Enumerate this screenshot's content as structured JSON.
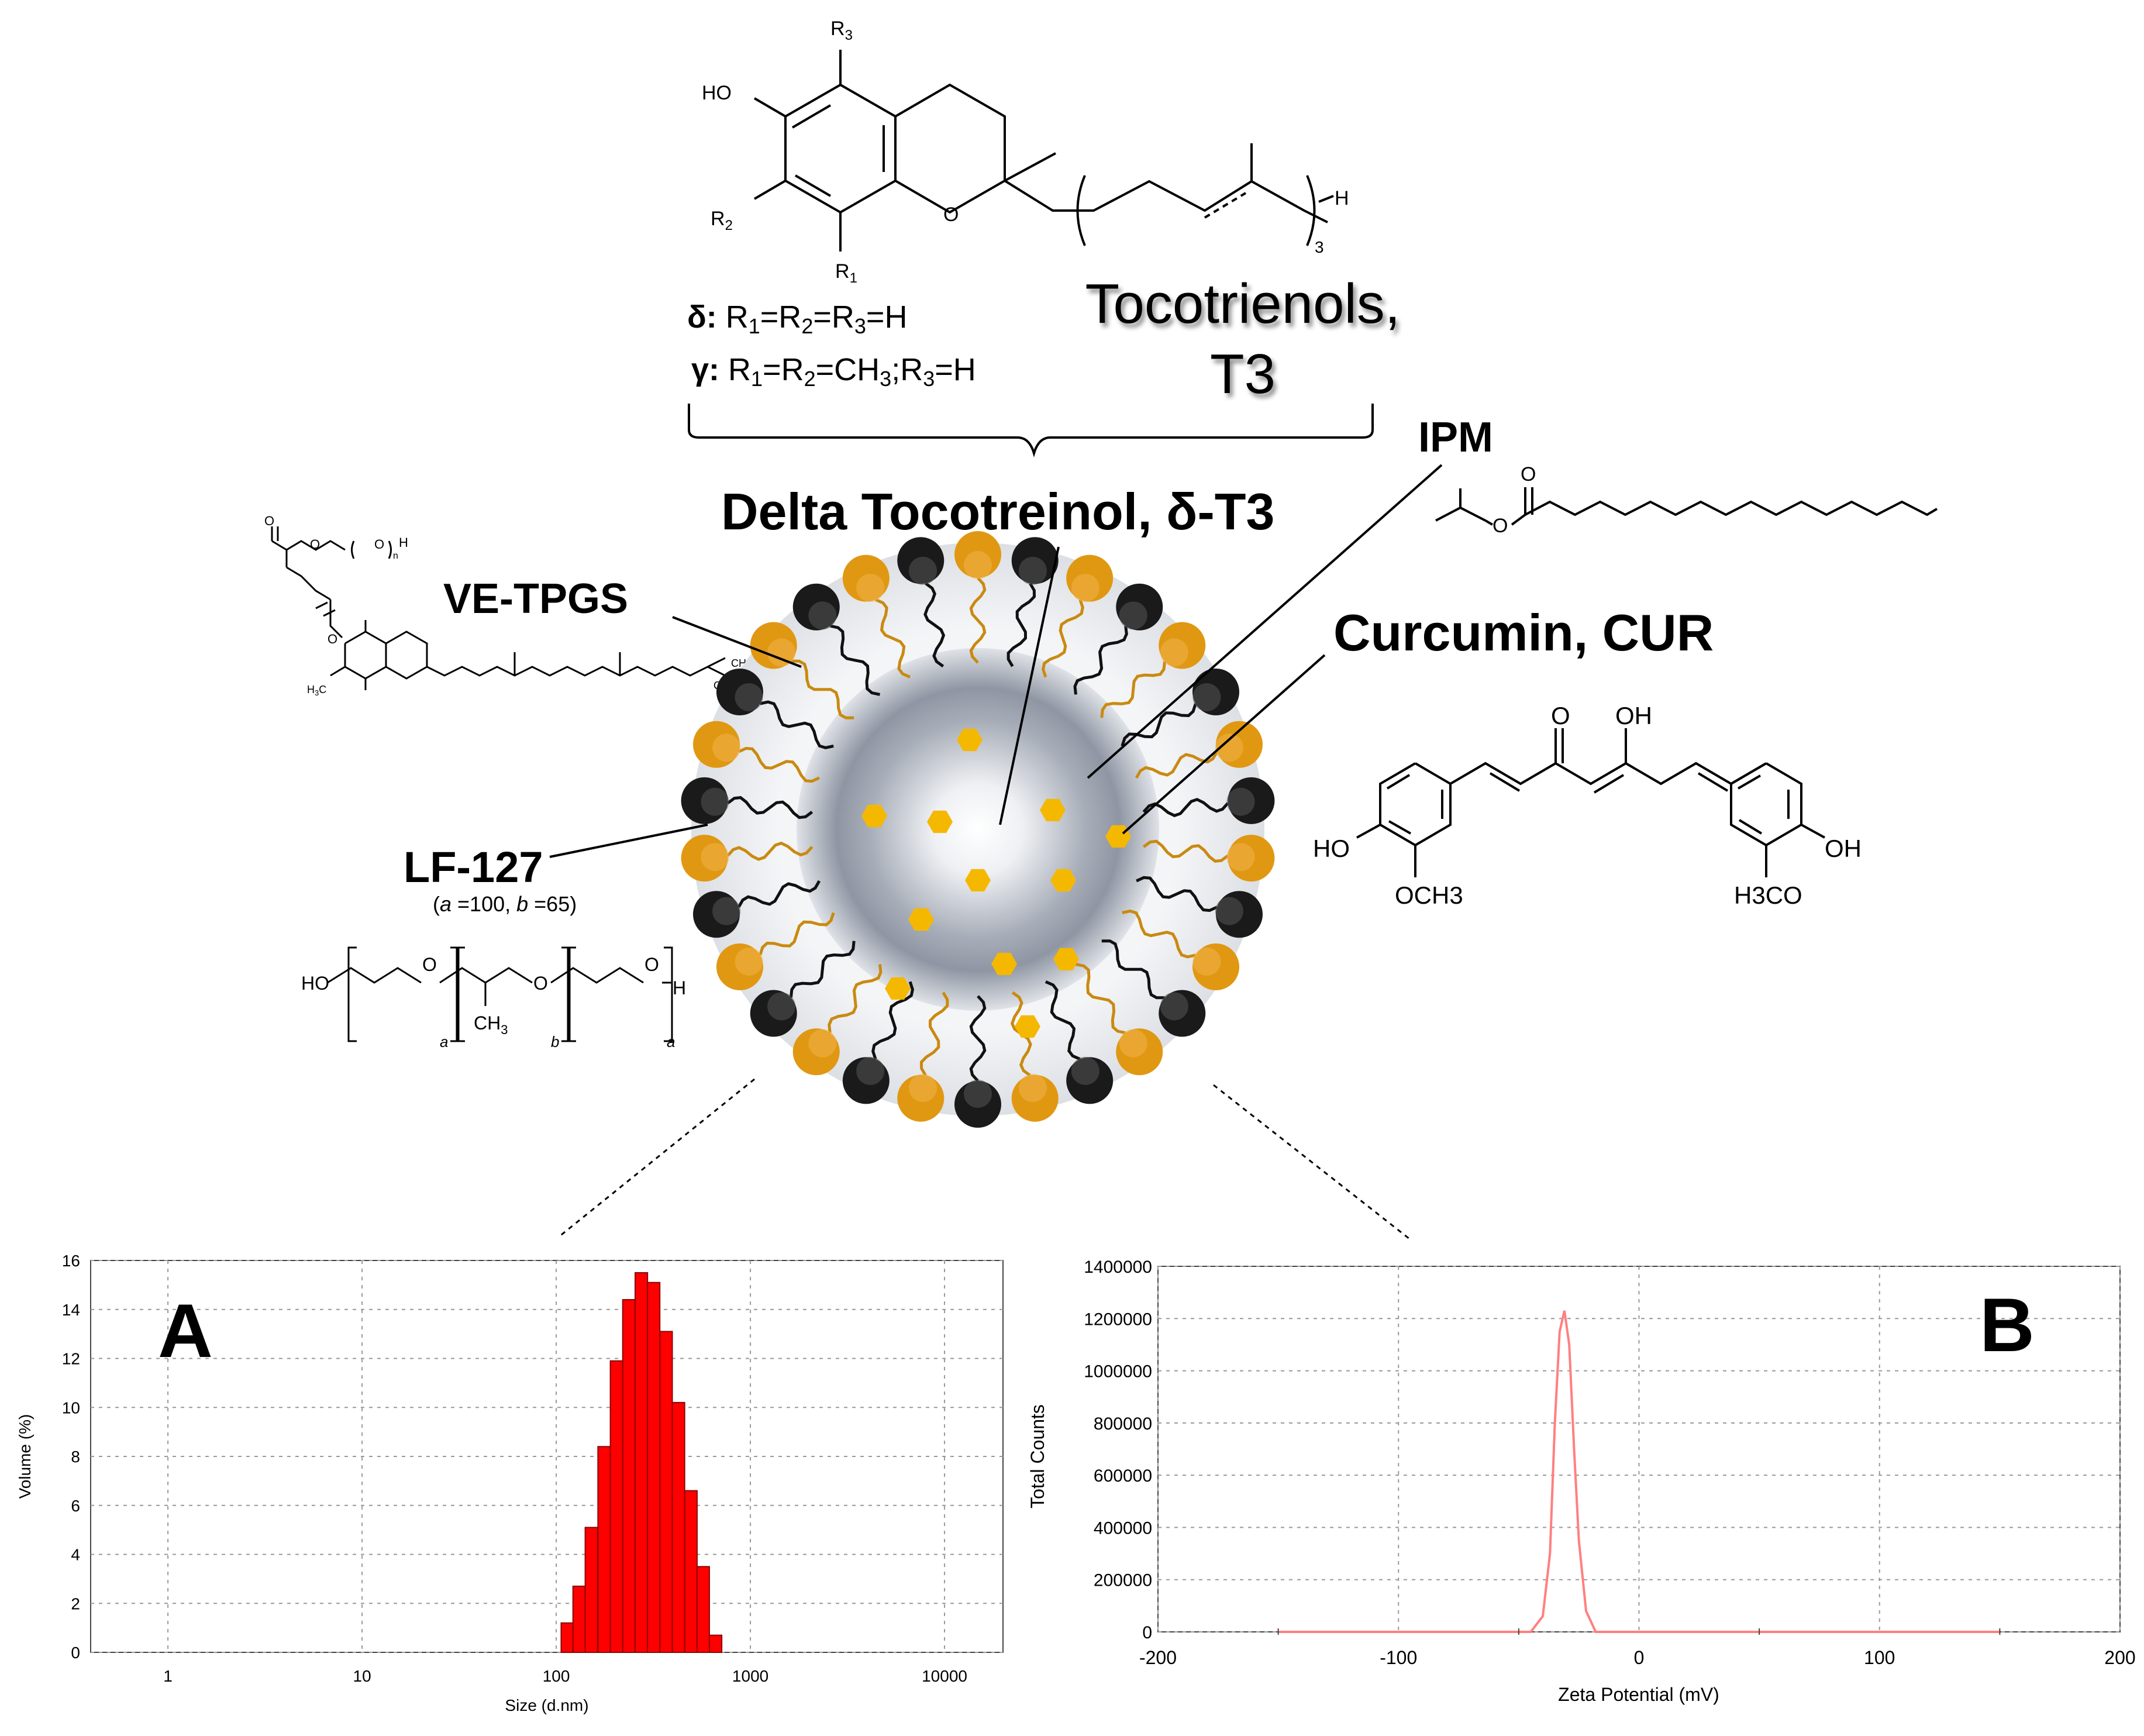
{
  "top_structure": {
    "r3": "R",
    "r3_sub": "3",
    "ho": "HO",
    "r2": "R",
    "r2_sub": "2",
    "r1": "R",
    "r1_sub": "1",
    "o": "O",
    "h": "H",
    "rep": "3",
    "delta_line": {
      "greek": "δ:",
      "a": " R",
      "s1": "1",
      "b": "=R",
      "s2": "2",
      "c": "=R",
      "s3": "3",
      "d": "=H"
    },
    "gamma_line": {
      "greek": "γ:",
      "a": " R",
      "s1": "1",
      "b": "=R",
      "s2": "2",
      "c": "=CH",
      "s3": "3",
      "d": ";R",
      "s4": "3",
      "e": "=H"
    },
    "tocotrienols_line1": "Tocotrienols,",
    "tocotrienols_line2": "T3"
  },
  "labels": {
    "delta_t3": "Delta Tocotreinol, δ-T3",
    "ipm": "IPM",
    "curcumin": "Curcumin, CUR",
    "vetpgs": "VE-TPGS",
    "lf127": "LF-127",
    "lf127_params": {
      "open": "(",
      "a": "a",
      "a_val": " =100, ",
      "b": "b",
      "b_val": " =65)"
    }
  },
  "curcumin_structure": {
    "o": "O",
    "oh_top": "OH",
    "ho_left": "HO",
    "och3": "OCH3",
    "oh_right": "OH",
    "h3co": "H3CO"
  },
  "lf127_structure": {
    "ho": "HO",
    "o1": "O",
    "o2": "O",
    "o3": "O",
    "h": "H",
    "ch3": "CH",
    "ch3_sub": "3",
    "a1": "a",
    "b": "b",
    "a2": "a"
  },
  "vetpgs_structure": {
    "o": "O",
    "h": "H",
    "n": "n",
    "ch3": "CH",
    "ch3_sub": "3",
    "h3c": "H",
    "h3c_sub": "3",
    "h3c_c": "C"
  },
  "chart_data": [
    {
      "type": "bar",
      "panel": "A",
      "xlabel": "Size (d.nm)",
      "ylabel": "Volume (%)",
      "x_scale": "log",
      "xlim": [
        0.4,
        20000
      ],
      "ylim": [
        0,
        16
      ],
      "x_ticks": [
        "1",
        "10",
        "100",
        "1000",
        "10000"
      ],
      "y_ticks": [
        "0",
        "2",
        "4",
        "6",
        "8",
        "10",
        "12",
        "14",
        "16"
      ],
      "grid": true,
      "color": "#ff0000",
      "bins_left_edge": [
        106,
        122,
        141,
        164,
        190,
        220,
        255,
        295,
        342,
        396,
        459,
        531,
        615
      ],
      "values": [
        1.2,
        2.7,
        5.1,
        8.4,
        11.9,
        14.4,
        15.5,
        15.1,
        13.1,
        10.2,
        6.6,
        3.5,
        0.7
      ],
      "bin_ratio": 1.158
    },
    {
      "type": "line",
      "panel": "B",
      "xlabel": "Zeta Potential (mV)",
      "ylabel": "Total Counts",
      "xlim": [
        -200,
        200
      ],
      "ylim": [
        0,
        1400000
      ],
      "x_ticks": [
        "-200",
        "-100",
        "0",
        "100",
        "200"
      ],
      "y_ticks": [
        "0",
        "200000",
        "400000",
        "600000",
        "800000",
        "1000000",
        "1200000",
        "1400000"
      ],
      "grid": true,
      "color": "#ff8080",
      "x": [
        -150,
        -60,
        -45,
        -40,
        -37,
        -35,
        -33,
        -31,
        -29,
        -27,
        -25,
        -22,
        -18,
        -15,
        150
      ],
      "y": [
        0,
        0,
        0,
        60000,
        300000,
        800000,
        1150000,
        1230000,
        1100000,
        700000,
        350000,
        80000,
        0,
        0,
        0
      ]
    }
  ],
  "panel_letters": {
    "a": "A",
    "b": "B"
  },
  "colors": {
    "orange": "#e09812",
    "black_head": "#1a1a1a",
    "core_dark": "#8f96a3",
    "hexagon": "#f5b800",
    "bar": "#ff0000",
    "zeta_line": "#ff8080"
  }
}
